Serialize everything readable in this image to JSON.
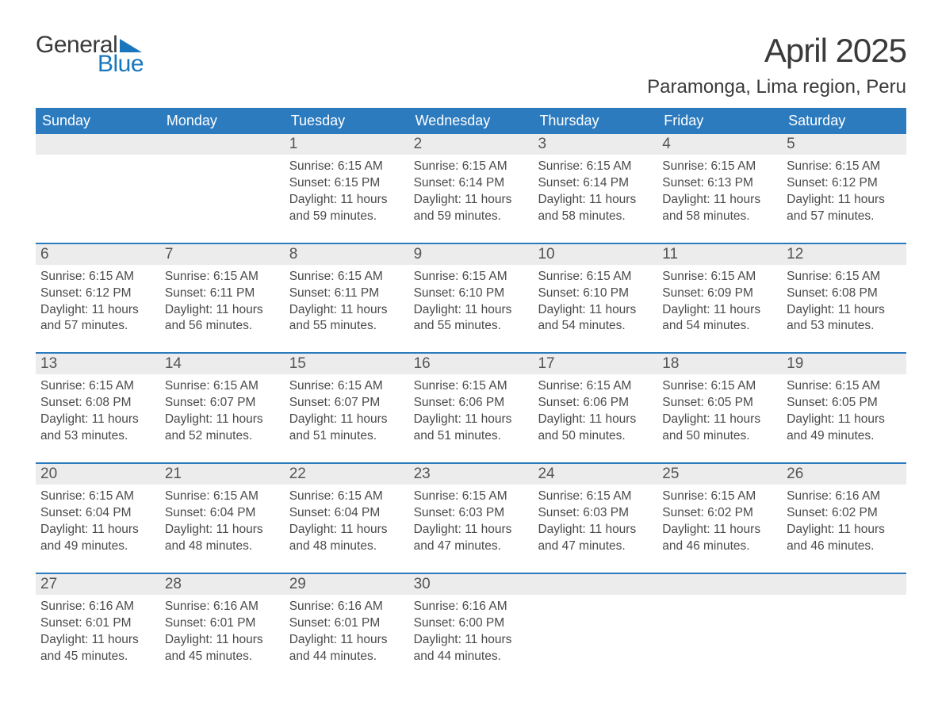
{
  "logo": {
    "word1": "General",
    "word2": "Blue",
    "word1_color": "#3a3a3a",
    "word2_color": "#1976bd",
    "triangle_color": "#1976bd"
  },
  "title": "April 2025",
  "subtitle": "Paramonga, Lima region, Peru",
  "header_bg": "#2d7bbf",
  "header_fg": "#ffffff",
  "daynum_bg": "#ececec",
  "rule_color": "#2d7bbf",
  "text_color": "#4a4a4a",
  "weekdays": [
    "Sunday",
    "Monday",
    "Tuesday",
    "Wednesday",
    "Thursday",
    "Friday",
    "Saturday"
  ],
  "weeks": [
    {
      "nums": [
        "",
        "",
        "1",
        "2",
        "3",
        "4",
        "5"
      ],
      "cells": [
        [],
        [],
        [
          "Sunrise: 6:15 AM",
          "Sunset: 6:15 PM",
          "Daylight: 11 hours",
          "and 59 minutes."
        ],
        [
          "Sunrise: 6:15 AM",
          "Sunset: 6:14 PM",
          "Daylight: 11 hours",
          "and 59 minutes."
        ],
        [
          "Sunrise: 6:15 AM",
          "Sunset: 6:14 PM",
          "Daylight: 11 hours",
          "and 58 minutes."
        ],
        [
          "Sunrise: 6:15 AM",
          "Sunset: 6:13 PM",
          "Daylight: 11 hours",
          "and 58 minutes."
        ],
        [
          "Sunrise: 6:15 AM",
          "Sunset: 6:12 PM",
          "Daylight: 11 hours",
          "and 57 minutes."
        ]
      ]
    },
    {
      "nums": [
        "6",
        "7",
        "8",
        "9",
        "10",
        "11",
        "12"
      ],
      "cells": [
        [
          "Sunrise: 6:15 AM",
          "Sunset: 6:12 PM",
          "Daylight: 11 hours",
          "and 57 minutes."
        ],
        [
          "Sunrise: 6:15 AM",
          "Sunset: 6:11 PM",
          "Daylight: 11 hours",
          "and 56 minutes."
        ],
        [
          "Sunrise: 6:15 AM",
          "Sunset: 6:11 PM",
          "Daylight: 11 hours",
          "and 55 minutes."
        ],
        [
          "Sunrise: 6:15 AM",
          "Sunset: 6:10 PM",
          "Daylight: 11 hours",
          "and 55 minutes."
        ],
        [
          "Sunrise: 6:15 AM",
          "Sunset: 6:10 PM",
          "Daylight: 11 hours",
          "and 54 minutes."
        ],
        [
          "Sunrise: 6:15 AM",
          "Sunset: 6:09 PM",
          "Daylight: 11 hours",
          "and 54 minutes."
        ],
        [
          "Sunrise: 6:15 AM",
          "Sunset: 6:08 PM",
          "Daylight: 11 hours",
          "and 53 minutes."
        ]
      ]
    },
    {
      "nums": [
        "13",
        "14",
        "15",
        "16",
        "17",
        "18",
        "19"
      ],
      "cells": [
        [
          "Sunrise: 6:15 AM",
          "Sunset: 6:08 PM",
          "Daylight: 11 hours",
          "and 53 minutes."
        ],
        [
          "Sunrise: 6:15 AM",
          "Sunset: 6:07 PM",
          "Daylight: 11 hours",
          "and 52 minutes."
        ],
        [
          "Sunrise: 6:15 AM",
          "Sunset: 6:07 PM",
          "Daylight: 11 hours",
          "and 51 minutes."
        ],
        [
          "Sunrise: 6:15 AM",
          "Sunset: 6:06 PM",
          "Daylight: 11 hours",
          "and 51 minutes."
        ],
        [
          "Sunrise: 6:15 AM",
          "Sunset: 6:06 PM",
          "Daylight: 11 hours",
          "and 50 minutes."
        ],
        [
          "Sunrise: 6:15 AM",
          "Sunset: 6:05 PM",
          "Daylight: 11 hours",
          "and 50 minutes."
        ],
        [
          "Sunrise: 6:15 AM",
          "Sunset: 6:05 PM",
          "Daylight: 11 hours",
          "and 49 minutes."
        ]
      ]
    },
    {
      "nums": [
        "20",
        "21",
        "22",
        "23",
        "24",
        "25",
        "26"
      ],
      "cells": [
        [
          "Sunrise: 6:15 AM",
          "Sunset: 6:04 PM",
          "Daylight: 11 hours",
          "and 49 minutes."
        ],
        [
          "Sunrise: 6:15 AM",
          "Sunset: 6:04 PM",
          "Daylight: 11 hours",
          "and 48 minutes."
        ],
        [
          "Sunrise: 6:15 AM",
          "Sunset: 6:04 PM",
          "Daylight: 11 hours",
          "and 48 minutes."
        ],
        [
          "Sunrise: 6:15 AM",
          "Sunset: 6:03 PM",
          "Daylight: 11 hours",
          "and 47 minutes."
        ],
        [
          "Sunrise: 6:15 AM",
          "Sunset: 6:03 PM",
          "Daylight: 11 hours",
          "and 47 minutes."
        ],
        [
          "Sunrise: 6:15 AM",
          "Sunset: 6:02 PM",
          "Daylight: 11 hours",
          "and 46 minutes."
        ],
        [
          "Sunrise: 6:16 AM",
          "Sunset: 6:02 PM",
          "Daylight: 11 hours",
          "and 46 minutes."
        ]
      ]
    },
    {
      "nums": [
        "27",
        "28",
        "29",
        "30",
        "",
        "",
        ""
      ],
      "cells": [
        [
          "Sunrise: 6:16 AM",
          "Sunset: 6:01 PM",
          "Daylight: 11 hours",
          "and 45 minutes."
        ],
        [
          "Sunrise: 6:16 AM",
          "Sunset: 6:01 PM",
          "Daylight: 11 hours",
          "and 45 minutes."
        ],
        [
          "Sunrise: 6:16 AM",
          "Sunset: 6:01 PM",
          "Daylight: 11 hours",
          "and 44 minutes."
        ],
        [
          "Sunrise: 6:16 AM",
          "Sunset: 6:00 PM",
          "Daylight: 11 hours",
          "and 44 minutes."
        ],
        [],
        [],
        []
      ]
    }
  ]
}
